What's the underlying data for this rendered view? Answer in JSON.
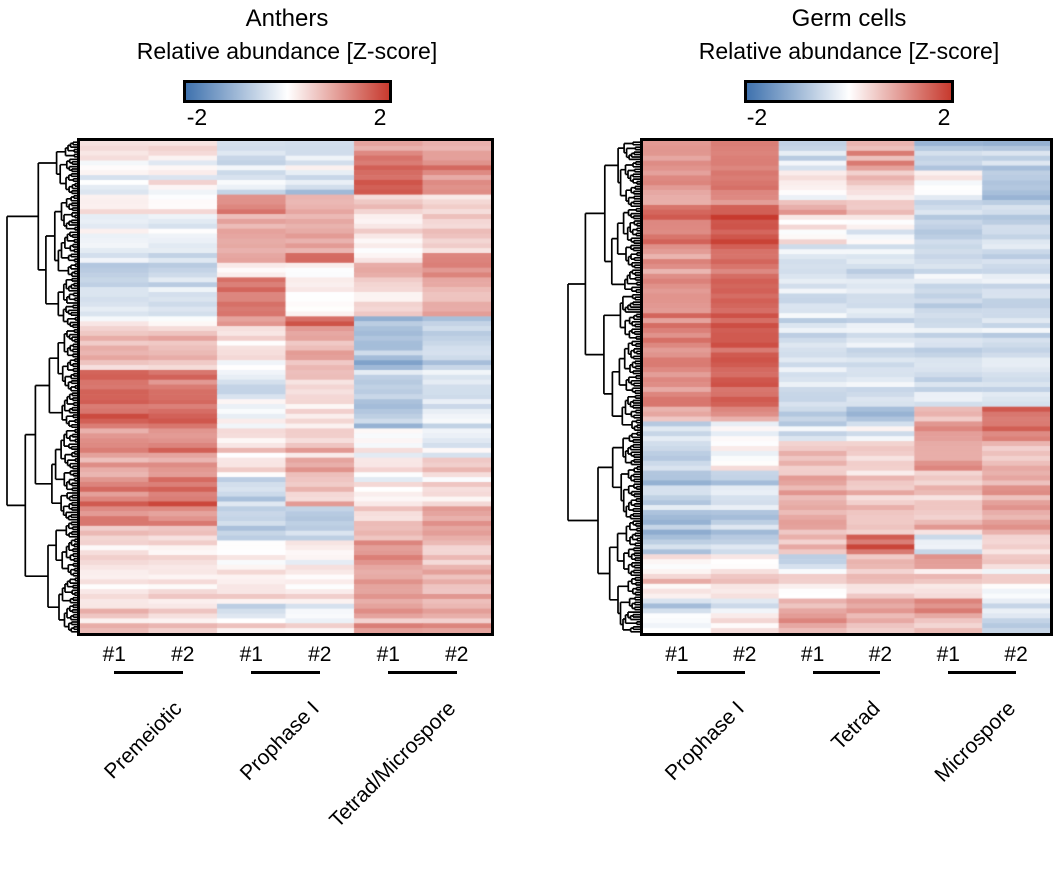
{
  "figure": {
    "panels": [
      {
        "title": "Anthers",
        "colorbar_label": "Relative abundance [Z-score]",
        "colorbar_ticks": [
          "-2",
          "2"
        ],
        "groups": [
          {
            "label": "Premeiotic",
            "replicates": [
              "#1",
              "#2"
            ]
          },
          {
            "label": "Prophase I",
            "replicates": [
              "#1",
              "#2"
            ]
          },
          {
            "label": "Tetrad/Microspore",
            "replicates": [
              "#1",
              "#2"
            ]
          }
        ]
      },
      {
        "title": "Germ cells",
        "colorbar_label": "Relative abundance [Z-score]",
        "colorbar_ticks": [
          "-2",
          "2"
        ],
        "groups": [
          {
            "label": "Prophase I",
            "replicates": [
              "#1",
              "#2"
            ]
          },
          {
            "label": "Tetrad",
            "replicates": [
              "#1",
              "#2"
            ]
          },
          {
            "label": "Microspore",
            "replicates": [
              "#1",
              "#2"
            ]
          }
        ]
      }
    ]
  },
  "chart_data": [
    {
      "type": "heatmap",
      "title": "Anthers",
      "colorbar": {
        "label": "Relative abundance [Z-score]",
        "ticks": [
          "-2",
          "2"
        ],
        "zlim": [
          -2,
          2
        ]
      },
      "colormap": {
        "negative": "#3f72ae",
        "zero": "#ffffff",
        "positive": "#c73a2e"
      },
      "columns": [
        "Premeiotic #1",
        "Premeiotic #2",
        "Prophase I #1",
        "Prophase I #2",
        "Tetrad/Microspore #1",
        "Tetrad/Microspore #2"
      ],
      "row_dendrogram": {
        "side": "left",
        "leaves": 202,
        "two_main_clusters_split": 0.38
      },
      "row_blocks": [
        {
          "rows": 3,
          "z": [
            0.35,
            0.3,
            -0.3,
            -0.3,
            1.0,
            0.9
          ],
          "jitter": 0.3
        },
        {
          "rows": 4,
          "z": [
            0.05,
            0.0,
            -0.45,
            -0.15,
            1.45,
            1.15
          ],
          "jitter": 0.3
        },
        {
          "rows": 4,
          "z": [
            -0.15,
            0.1,
            -0.35,
            -0.5,
            1.7,
            1.1
          ],
          "jitter": 0.35
        },
        {
          "rows": 4,
          "z": [
            0.2,
            0.1,
            1.25,
            0.8,
            0.3,
            0.15
          ],
          "jitter": 0.3
        },
        {
          "rows": 8,
          "z": [
            -0.15,
            -0.2,
            0.95,
            0.9,
            0.3,
            0.55
          ],
          "jitter": 0.3
        },
        {
          "rows": 2,
          "z": [
            -0.45,
            -0.5,
            1.0,
            1.5,
            0.15,
            1.2
          ],
          "jitter": 0.3
        },
        {
          "rows": 3,
          "z": [
            -0.75,
            -0.7,
            0.1,
            0.0,
            0.9,
            1.3
          ],
          "jitter": 0.25
        },
        {
          "rows": 8,
          "z": [
            -0.45,
            -0.4,
            1.5,
            0.2,
            0.5,
            0.9
          ],
          "jitter": 0.3
        },
        {
          "rows": 2,
          "z": [
            0.1,
            0.05,
            0.9,
            1.5,
            -0.8,
            -0.6
          ],
          "jitter": 0.25
        },
        {
          "rows": 9,
          "z": [
            0.7,
            0.7,
            0.35,
            0.9,
            -0.85,
            -0.55
          ],
          "jitter": 0.35
        },
        {
          "rows": 6,
          "z": [
            1.5,
            1.4,
            -0.45,
            0.5,
            -0.55,
            -0.3
          ],
          "jitter": 0.3
        },
        {
          "rows": 6,
          "z": [
            1.55,
            1.45,
            -0.15,
            0.2,
            -0.8,
            -0.4
          ],
          "jitter": 0.3
        },
        {
          "rows": 6,
          "z": [
            1.05,
            1.15,
            0.3,
            0.55,
            -0.1,
            -0.35
          ],
          "jitter": 0.35
        },
        {
          "rows": 4,
          "z": [
            0.85,
            0.9,
            0.3,
            0.9,
            0.3,
            0.5
          ],
          "jitter": 0.35
        },
        {
          "rows": 6,
          "z": [
            1.25,
            1.5,
            -0.65,
            0.45,
            0.1,
            0.25
          ],
          "jitter": 0.35
        },
        {
          "rows": 4,
          "z": [
            1.15,
            1.05,
            -0.75,
            -0.75,
            0.45,
            0.9
          ],
          "jitter": 0.3
        },
        {
          "rows": 3,
          "z": [
            0.5,
            0.4,
            -0.6,
            -0.65,
            0.55,
            0.85
          ],
          "jitter": 0.3
        },
        {
          "rows": 5,
          "z": [
            0.3,
            0.25,
            0.0,
            0.05,
            1.1,
            0.55
          ],
          "jitter": 0.3
        },
        {
          "rows": 8,
          "z": [
            0.3,
            0.3,
            0.25,
            0.25,
            0.9,
            0.8
          ],
          "jitter": 0.25
        },
        {
          "rows": 3,
          "z": [
            0.4,
            0.35,
            -0.4,
            -0.15,
            1.0,
            0.8
          ],
          "jitter": 0.3
        },
        {
          "rows": 3,
          "z": [
            0.35,
            0.3,
            0.3,
            0.1,
            0.95,
            0.75
          ],
          "jitter": 0.35
        }
      ]
    },
    {
      "type": "heatmap",
      "title": "Germ cells",
      "colorbar": {
        "label": "Relative abundance [Z-score]",
        "ticks": [
          "-2",
          "2"
        ],
        "zlim": [
          -2,
          2
        ]
      },
      "colormap": {
        "negative": "#3f72ae",
        "zero": "#ffffff",
        "positive": "#c73a2e"
      },
      "columns": [
        "Prophase I #1",
        "Prophase I #2",
        "Tetrad #1",
        "Tetrad #2",
        "Microspore #1",
        "Microspore #2"
      ],
      "row_dendrogram": {
        "side": "left",
        "leaves": 200,
        "two_main_clusters_split": 0.59
      },
      "row_blocks": [
        {
          "rows": 6,
          "z": [
            1.1,
            1.3,
            -0.35,
            1.0,
            -0.75,
            -0.75
          ],
          "jitter": 0.35
        },
        {
          "rows": 6,
          "z": [
            0.9,
            1.2,
            0.15,
            0.5,
            0.0,
            -0.8
          ],
          "jitter": 0.3
        },
        {
          "rows": 3,
          "z": [
            1.0,
            1.25,
            0.8,
            0.5,
            -0.6,
            -0.65
          ],
          "jitter": 0.35
        },
        {
          "rows": 6,
          "z": [
            1.2,
            1.55,
            0.05,
            -0.15,
            -0.75,
            -0.7
          ],
          "jitter": 0.3
        },
        {
          "rows": 14,
          "z": [
            1.1,
            1.5,
            -0.4,
            -0.4,
            -0.45,
            -0.45
          ],
          "jitter": 0.25
        },
        {
          "rows": 19,
          "z": [
            1.2,
            1.6,
            -0.45,
            -0.45,
            -0.5,
            -0.45
          ],
          "jitter": 0.25
        },
        {
          "rows": 3,
          "z": [
            0.6,
            0.9,
            -0.55,
            -0.9,
            0.6,
            1.35
          ],
          "jitter": 0.3
        },
        {
          "rows": 4,
          "z": [
            -0.3,
            0.1,
            -0.35,
            -0.2,
            1.0,
            1.3
          ],
          "jitter": 0.35
        },
        {
          "rows": 6,
          "z": [
            -0.55,
            0.05,
            0.55,
            0.45,
            1.0,
            0.7
          ],
          "jitter": 0.3
        },
        {
          "rows": 13,
          "z": [
            -0.8,
            -0.6,
            0.8,
            0.55,
            0.55,
            0.85
          ],
          "jitter": 0.4
        },
        {
          "rows": 4,
          "z": [
            -0.75,
            -0.55,
            0.7,
            1.6,
            -0.2,
            0.5
          ],
          "jitter": 0.35
        },
        {
          "rows": 3,
          "z": [
            0.1,
            0.15,
            -0.7,
            0.6,
            0.9,
            0.4
          ],
          "jitter": 0.3
        },
        {
          "rows": 6,
          "z": [
            0.3,
            0.35,
            0.1,
            0.4,
            0.5,
            0.3
          ],
          "jitter": 0.35
        },
        {
          "rows": 3,
          "z": [
            -0.7,
            -0.4,
            0.8,
            0.9,
            1.1,
            -0.5
          ],
          "jitter": 0.3
        },
        {
          "rows": 4,
          "z": [
            -0.1,
            0.25,
            0.9,
            0.6,
            0.5,
            -0.7
          ],
          "jitter": 0.35
        }
      ]
    }
  ]
}
